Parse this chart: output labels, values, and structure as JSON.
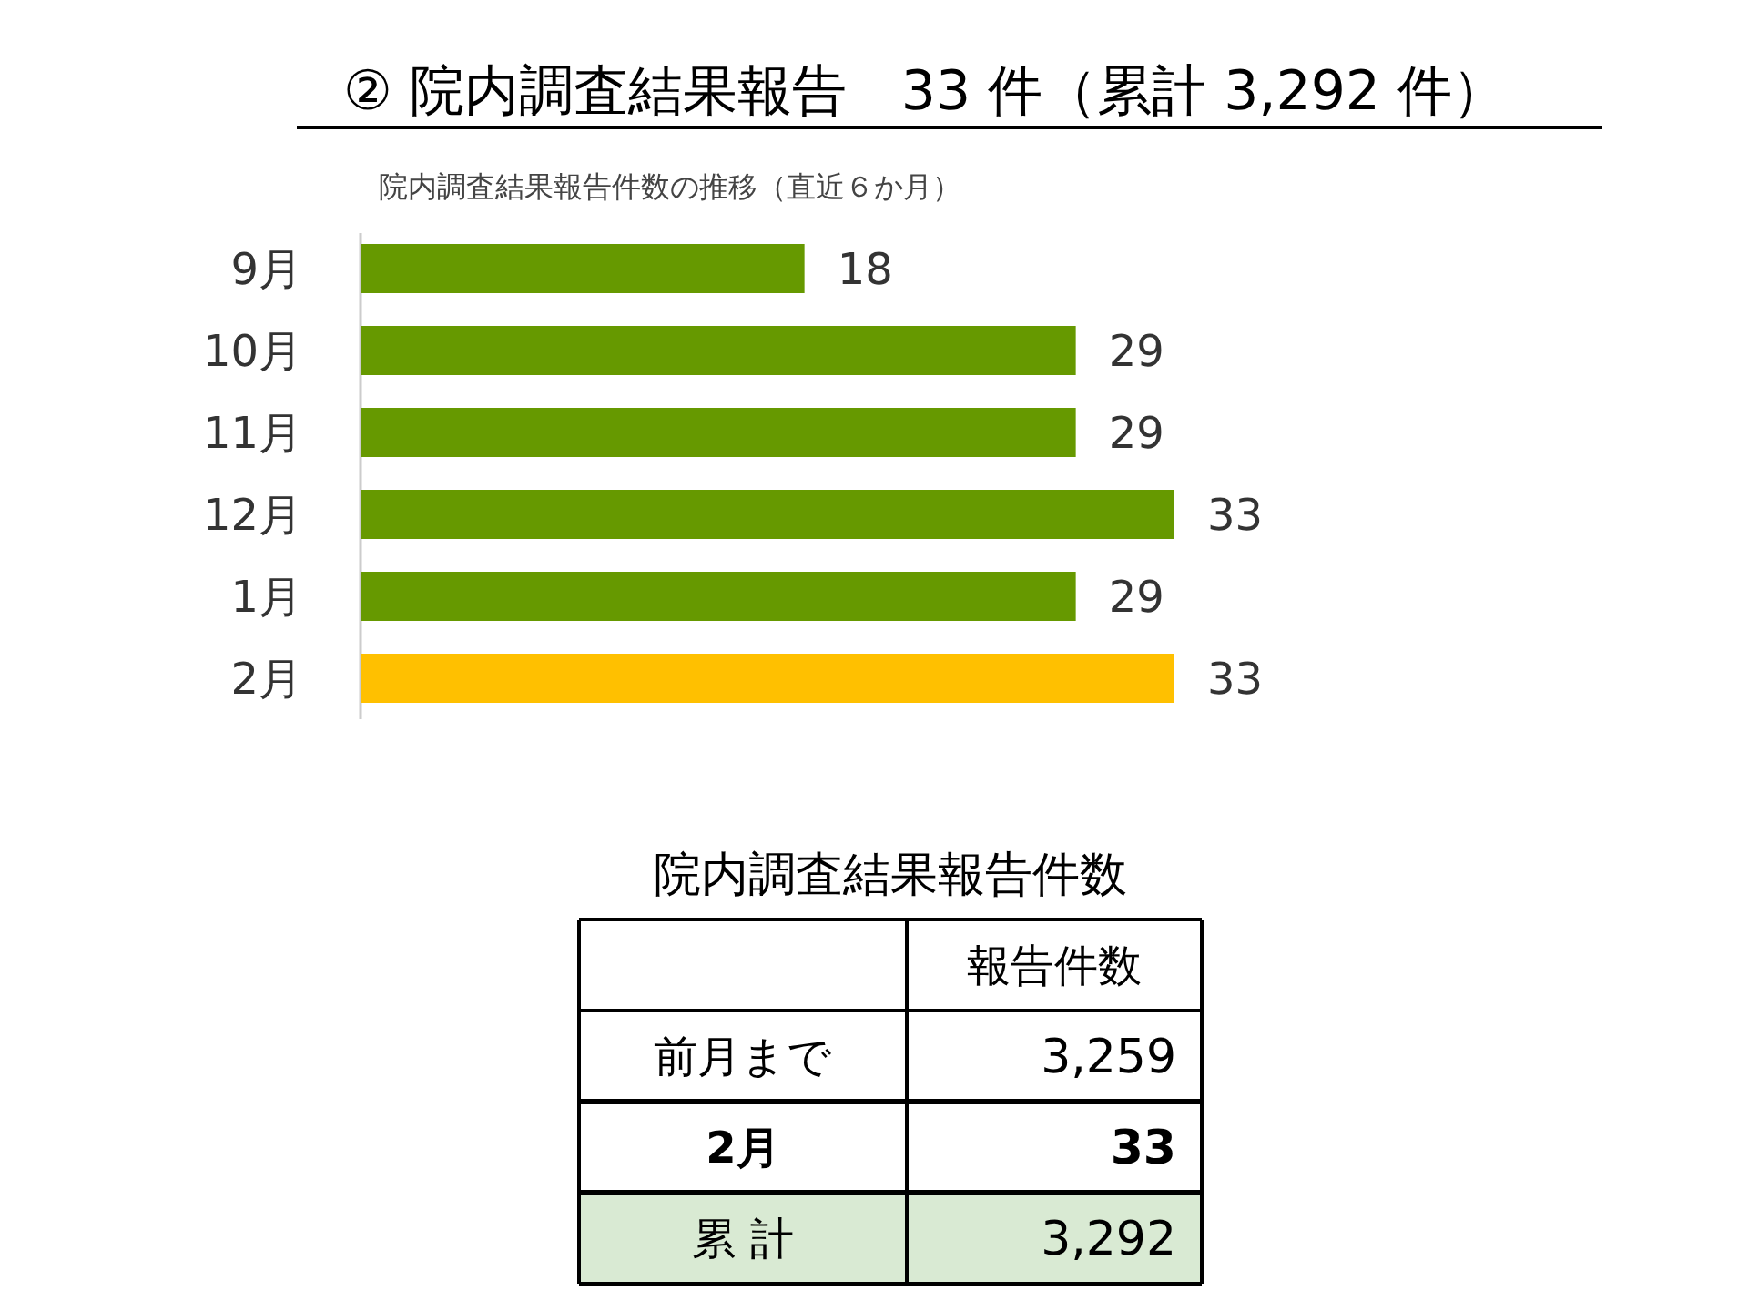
{
  "chart_data": [
    {
      "type": "bar",
      "orientation": "horizontal",
      "title": "② 院内調査結果報告　33 件（累計 3,292 件）",
      "subtitle": "院内調査結果報告件数の推移（直近６か月）",
      "categories": [
        "9月",
        "10月",
        "11月",
        "12月",
        "1月",
        "2月"
      ],
      "values": [
        18,
        29,
        29,
        33,
        29,
        33
      ],
      "colors": [
        "#669900",
        "#669900",
        "#669900",
        "#669900",
        "#669900",
        "#ffc000"
      ],
      "data_labels": true
    },
    {
      "type": "other",
      "title": "院内調査結果報告件数",
      "annotations": [
        "報告件数",
        "前月まで",
        "3,259",
        "2月",
        "33",
        "累 計",
        "3,292"
      ]
    }
  ]
}
